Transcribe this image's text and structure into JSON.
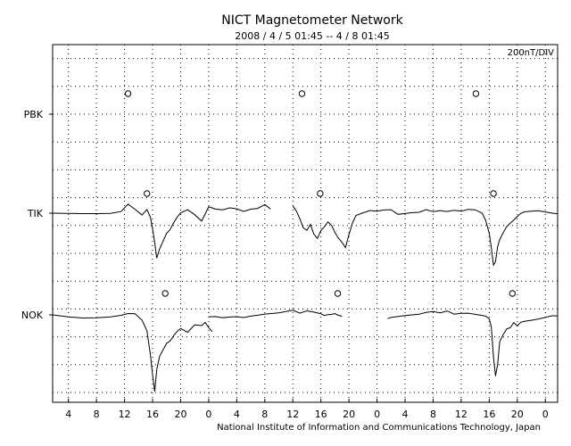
{
  "chart_data": {
    "type": "line",
    "title": "NICT Magnetometer Network",
    "subtitle": "2008 / 4 / 5  01:45 --  4 / 8  01:45",
    "scale_label": "200nT/DIV",
    "footer": "National Institute of Information and Communications Technology, Japan",
    "x_tick_labels": [
      "4",
      "8",
      "12",
      "16",
      "20",
      "0",
      "4",
      "8",
      "12",
      "16",
      "20",
      "0",
      "4",
      "8",
      "12",
      "16",
      "20",
      "0"
    ],
    "x_tick_hours": [
      4,
      8,
      12,
      16,
      20,
      24,
      28,
      32,
      36,
      40,
      44,
      48,
      52,
      56,
      60,
      64,
      68,
      72
    ],
    "xlim_hours": [
      1.75,
      73.75
    ],
    "grid": true,
    "y_divisions_nT": 200,
    "stations": [
      {
        "name": "PBK",
        "baseline_div": -1,
        "no_data": true,
        "sunrise_markers_hours": [
          12.5,
          37.3,
          62.1
        ]
      },
      {
        "name": "TIK",
        "baseline_div": 0,
        "sunrise_markers_hours": [
          15.2,
          39.9,
          64.6
        ],
        "series_hours": [
          1.75,
          4,
          6,
          8,
          10,
          11.5,
          12.5,
          13.5,
          14.5,
          15.2,
          15.7,
          16.0,
          16.3,
          16.6,
          17.0,
          17.5,
          18.0,
          18.5,
          19.0,
          19.5,
          20,
          21,
          22,
          23,
          24,
          25,
          26,
          27,
          28,
          29,
          30,
          31,
          32,
          32.8,
          null,
          36,
          36.5,
          37,
          37.5,
          38,
          38.5,
          39,
          39.5,
          40,
          40.5,
          41,
          41.5,
          42,
          42.5,
          43,
          43.5,
          44,
          44.5,
          45,
          46,
          47,
          48,
          49,
          50,
          51,
          52,
          53,
          54,
          55,
          56,
          57,
          58,
          59,
          60,
          61,
          62,
          63,
          63.5,
          64,
          64.3,
          64.6,
          64.9,
          65.2,
          65.5,
          66,
          66.5,
          67,
          67.5,
          68,
          68.5,
          69,
          70,
          71,
          72,
          73,
          73.75
        ],
        "series_nT": [
          0,
          2,
          4,
          6,
          8,
          20,
          70,
          30,
          -15,
          20,
          -40,
          -120,
          -220,
          -330,
          -260,
          -200,
          -140,
          -110,
          -60,
          -20,
          10,
          30,
          -10,
          -60,
          40,
          20,
          15,
          30,
          25,
          10,
          30,
          40,
          70,
          40,
          null,
          60,
          20,
          -40,
          -110,
          -130,
          -90,
          -160,
          -190,
          -130,
          -100,
          -60,
          -80,
          -130,
          -170,
          -200,
          -240,
          -150,
          -70,
          -20,
          -5,
          10,
          5,
          15,
          20,
          -10,
          0,
          10,
          15,
          35,
          20,
          25,
          15,
          20,
          10,
          20,
          15,
          -10,
          -60,
          -150,
          -250,
          -370,
          -340,
          -230,
          -180,
          -130,
          -90,
          -70,
          -50,
          -30,
          -10,
          0,
          5,
          10,
          5,
          0,
          0
        ]
      },
      {
        "name": "NOK",
        "baseline_div": 0,
        "sunrise_markers_hours": [
          17.8,
          42.4,
          67.3
        ],
        "series_hours": [
          1.75,
          4,
          6,
          8,
          10,
          11.5,
          12.5,
          13.5,
          14.5,
          15.2,
          15.7,
          16.0,
          16.3,
          16.6,
          17.0,
          17.5,
          18.0,
          18.5,
          19.0,
          19.5,
          20,
          21,
          22,
          23,
          23.5,
          24,
          24.5,
          null,
          24,
          25,
          26,
          27,
          28,
          29,
          30,
          31,
          32,
          34,
          36,
          37,
          38,
          39,
          40,
          40.5,
          41,
          41.5,
          42,
          42.5,
          43,
          null,
          49.5,
          50,
          52,
          54,
          55,
          56,
          57,
          58,
          59,
          60,
          61,
          62,
          63,
          63.5,
          64,
          64.3,
          64.6,
          64.9,
          65.2,
          65.5,
          66,
          66.5,
          67,
          67.5,
          68,
          68.5,
          69,
          70,
          71,
          72,
          73,
          73.75
        ],
        "series_nT": [
          0,
          -10,
          -15,
          -12,
          -5,
          5,
          15,
          10,
          -40,
          -120,
          -300,
          -440,
          -560,
          -400,
          -300,
          -250,
          -200,
          -180,
          -140,
          -110,
          -90,
          -120,
          -70,
          -80,
          -60,
          -100,
          -130,
          null,
          -20,
          -15,
          -20,
          -10,
          -5,
          -10,
          0,
          5,
          10,
          15,
          30,
          5,
          20,
          10,
          0,
          -10,
          0,
          5,
          15,
          5,
          0,
          null,
          -20,
          -15,
          -5,
          0,
          10,
          15,
          5,
          20,
          0,
          10,
          15,
          10,
          5,
          0,
          -20,
          -80,
          -300,
          -440,
          -360,
          -200,
          -150,
          -110,
          -100,
          -60,
          -80,
          -50,
          -40,
          -30,
          -20,
          -10,
          0,
          -5,
          0
        ]
      }
    ]
  }
}
